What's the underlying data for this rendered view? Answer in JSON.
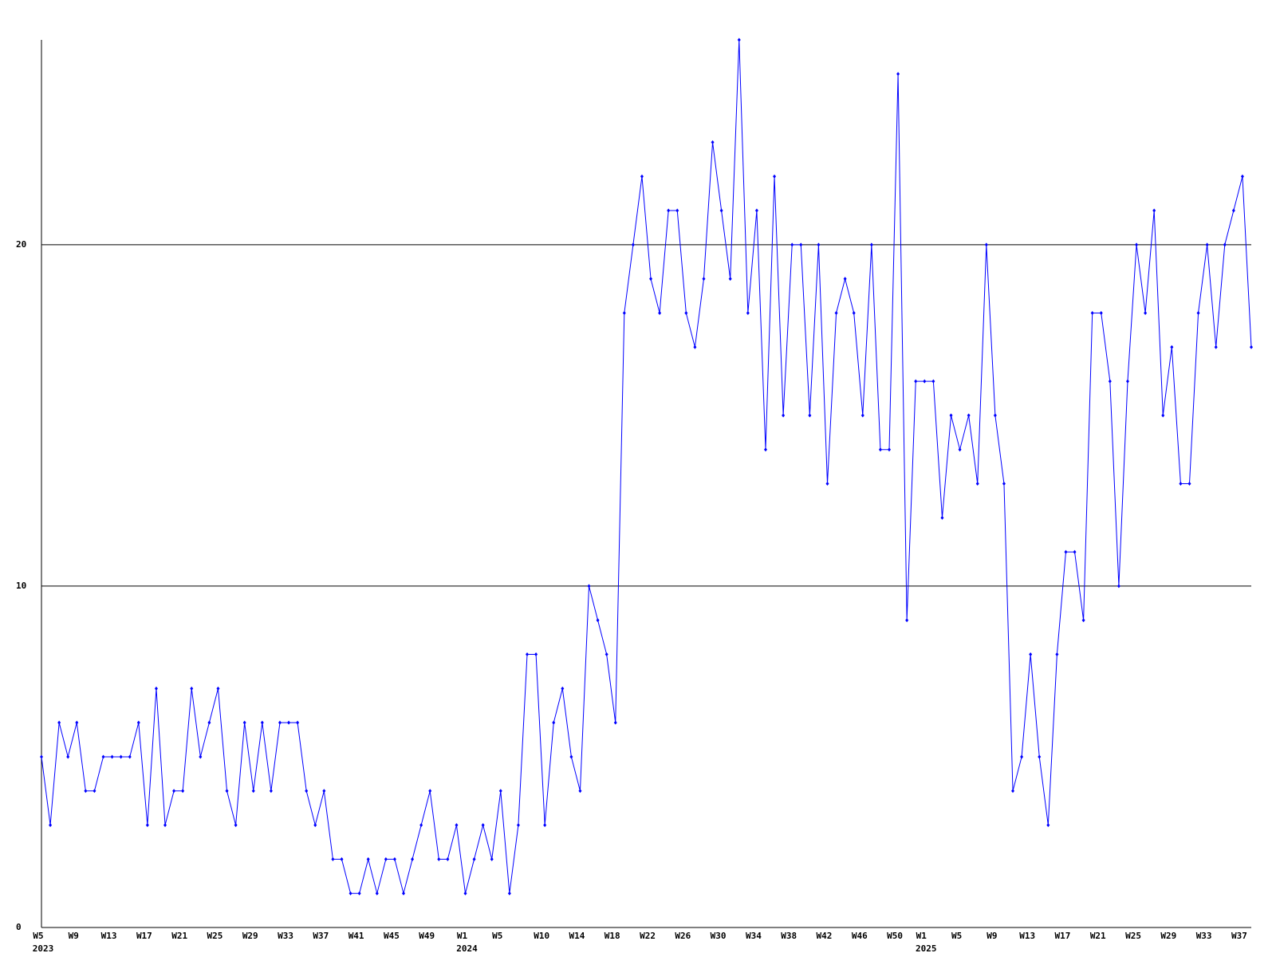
{
  "chart_data": {
    "type": "line",
    "categories": [
      "W5",
      null,
      null,
      null,
      "W9",
      null,
      null,
      null,
      "W13",
      null,
      null,
      null,
      "W17",
      null,
      null,
      null,
      "W21",
      null,
      null,
      null,
      "W25",
      null,
      null,
      null,
      "W29",
      null,
      null,
      null,
      "W33",
      null,
      null,
      null,
      "W37",
      null,
      null,
      null,
      "W41",
      null,
      null,
      null,
      "W45",
      null,
      null,
      null,
      "W49",
      null,
      null,
      null,
      "W1",
      null,
      null,
      null,
      "W5",
      null,
      null,
      null,
      null,
      "W10",
      null,
      null,
      null,
      "W14",
      null,
      null,
      null,
      "W18",
      null,
      null,
      null,
      "W22",
      null,
      null,
      null,
      "W26",
      null,
      null,
      null,
      "W30",
      null,
      null,
      null,
      "W34",
      null,
      null,
      null,
      "W38",
      null,
      null,
      null,
      "W42",
      null,
      null,
      null,
      "W46",
      null,
      null,
      null,
      "W50",
      null,
      null,
      "W1",
      null,
      null,
      null,
      "W5",
      null,
      null,
      null,
      "W9",
      null,
      null,
      null,
      "W13",
      null,
      null,
      null,
      "W17",
      null,
      null,
      null,
      "W21",
      null,
      null,
      null,
      "W25",
      null,
      null,
      null,
      "W29",
      null,
      null,
      null,
      "W33",
      null,
      null,
      null,
      "W37",
      null
    ],
    "category_years": [
      "2023",
      null,
      null,
      null,
      null,
      null,
      null,
      null,
      null,
      null,
      null,
      null,
      null,
      null,
      null,
      null,
      null,
      null,
      null,
      null,
      null,
      null,
      null,
      null,
      null,
      null,
      null,
      null,
      null,
      null,
      null,
      null,
      null,
      null,
      null,
      null,
      null,
      null,
      null,
      null,
      null,
      null,
      null,
      null,
      null,
      null,
      null,
      null,
      "2024",
      null,
      null,
      null,
      null,
      null,
      null,
      null,
      null,
      null,
      null,
      null,
      null,
      null,
      null,
      null,
      null,
      null,
      null,
      null,
      null,
      null,
      null,
      null,
      null,
      null,
      null,
      null,
      null,
      null,
      null,
      null,
      null,
      null,
      null,
      null,
      null,
      null,
      null,
      null,
      null,
      null,
      null,
      null,
      null,
      null,
      null,
      null,
      null,
      null,
      null,
      null,
      "2025",
      null,
      null,
      null,
      null,
      null,
      null,
      null,
      null,
      null,
      null,
      null,
      null,
      null,
      null,
      null,
      null,
      null,
      null,
      null,
      null,
      null,
      null,
      null,
      null,
      null,
      null,
      null,
      null,
      null,
      null,
      null,
      null,
      null,
      null,
      null,
      null,
      null
    ],
    "values": [
      5,
      3,
      6,
      5,
      6,
      4,
      4,
      5,
      5,
      5,
      5,
      6,
      3,
      7,
      3,
      4,
      4,
      7,
      5,
      6,
      7,
      4,
      3,
      6,
      4,
      6,
      4,
      6,
      6,
      6,
      4,
      3,
      4,
      2,
      2,
      1,
      1,
      2,
      1,
      2,
      2,
      1,
      2,
      3,
      4,
      2,
      2,
      3,
      1,
      2,
      3,
      2,
      4,
      1,
      3,
      8,
      8,
      3,
      6,
      7,
      5,
      4,
      10,
      9,
      8,
      6,
      18,
      20,
      22,
      19,
      18,
      21,
      21,
      18,
      17,
      19,
      23,
      21,
      19,
      26,
      18,
      21,
      14,
      22,
      15,
      20,
      20,
      15,
      20,
      13,
      18,
      19,
      18,
      15,
      20,
      14,
      14,
      25,
      9,
      16,
      16,
      16,
      12,
      15,
      14,
      15,
      13,
      20,
      15,
      13,
      4,
      5,
      8,
      5,
      3,
      8,
      11,
      11,
      9,
      18,
      18,
      16,
      10,
      16,
      20,
      18,
      21,
      15,
      17,
      13,
      13,
      18,
      20,
      17,
      20,
      21,
      22,
      17
    ],
    "color": "#0000ff",
    "ylim": [
      0,
      26
    ],
    "yticks": [
      0,
      10,
      20
    ],
    "grid": true
  }
}
